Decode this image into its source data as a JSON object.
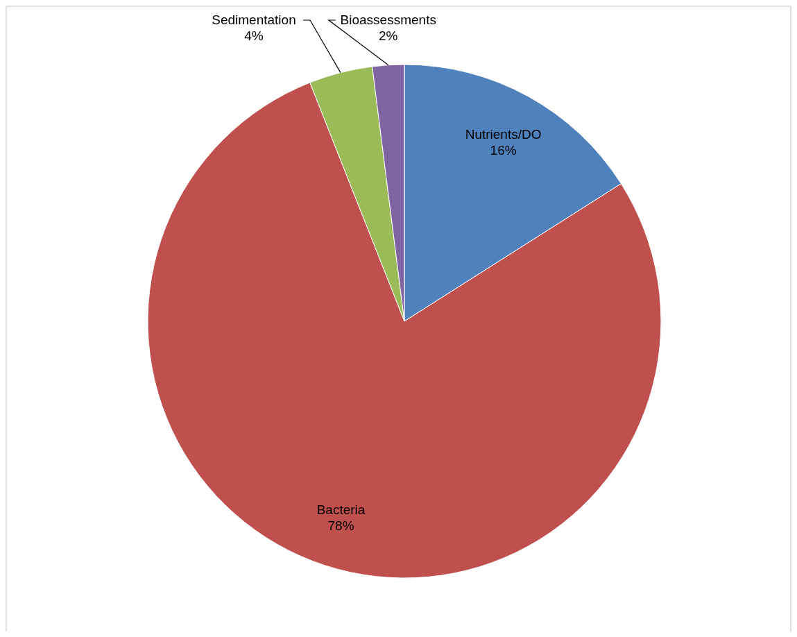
{
  "chart_data": {
    "type": "pie",
    "categories": [
      "Nutrients/DO",
      "Bacteria",
      "Sedimentation",
      "Bioassessments"
    ],
    "values": [
      16,
      78,
      4,
      2
    ],
    "colors": [
      "#4f81bd",
      "#c0504d",
      "#9bbb59",
      "#8064a2"
    ],
    "value_labels": [
      "16%",
      "78%",
      "4%",
      "2%"
    ]
  }
}
